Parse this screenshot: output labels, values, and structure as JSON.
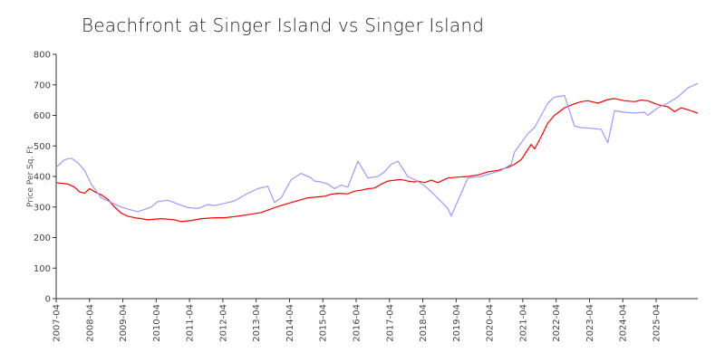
{
  "chart_data": {
    "type": "line",
    "title": "Beachfront at Singer Island vs Singer Island",
    "ylabel": "Price Per Sq. Ft",
    "xlabel": "",
    "ylim": [
      0,
      800
    ],
    "yticks": [
      0,
      100,
      200,
      300,
      400,
      500,
      600,
      700,
      800
    ],
    "x_ticks": [
      "2007-04",
      "2008-04",
      "2009-04",
      "2010-04",
      "2011-04",
      "2012-04",
      "2013-04",
      "2014-04",
      "2015-04",
      "2016-04",
      "2017-04",
      "2018-04",
      "2019-04",
      "2020-04",
      "2021-04",
      "2022-04",
      "2023-04",
      "2024-04",
      "2025-04"
    ],
    "x_range": [
      2007.25,
      2026.5
    ],
    "grid": false,
    "legend": "none",
    "series": [
      {
        "color": "#ff0000",
        "x": [
          2007.25,
          2007.6,
          2007.8,
          2007.95,
          2008.1,
          2008.25,
          2008.4,
          2008.6,
          2008.8,
          2009.0,
          2009.2,
          2009.4,
          2009.6,
          2009.8,
          2010.0,
          2010.4,
          2010.8,
          2011.0,
          2011.3,
          2011.6,
          2012.0,
          2012.3,
          2012.7,
          2013.0,
          2013.4,
          2013.8,
          2014.0,
          2014.4,
          2014.8,
          2015.0,
          2015.3,
          2015.5,
          2015.7,
          2016.0,
          2016.2,
          2016.4,
          2016.6,
          2016.8,
          2017.0,
          2017.2,
          2017.4,
          2017.6,
          2017.8,
          2018.0,
          2018.1,
          2018.3,
          2018.5,
          2018.7,
          2019.0,
          2019.3,
          2019.6,
          2019.9,
          2020.2,
          2020.5,
          2020.8,
          2021.0,
          2021.2,
          2021.35,
          2021.5,
          2021.6,
          2021.8,
          2022.0,
          2022.2,
          2022.5,
          2022.8,
          2023.0,
          2023.2,
          2023.5,
          2023.8,
          2024.0,
          2024.3,
          2024.6,
          2024.8,
          2025.0,
          2025.3,
          2025.6,
          2025.8,
          2026.0,
          2026.3,
          2026.5
        ],
        "y": [
          380,
          375,
          365,
          350,
          345,
          360,
          350,
          340,
          325,
          300,
          280,
          270,
          265,
          262,
          258,
          262,
          258,
          252,
          256,
          262,
          265,
          265,
          270,
          275,
          282,
          298,
          305,
          318,
          330,
          332,
          335,
          342,
          345,
          343,
          352,
          355,
          360,
          362,
          375,
          385,
          388,
          390,
          385,
          382,
          385,
          380,
          388,
          380,
          395,
          398,
          400,
          405,
          415,
          420,
          430,
          440,
          455,
          480,
          505,
          490,
          530,
          575,
          600,
          625,
          638,
          645,
          648,
          640,
          652,
          655,
          648,
          645,
          650,
          648,
          635,
          628,
          612,
          625,
          615,
          607
        ]
      },
      {
        "color": "#9999ff",
        "x": [
          2007.25,
          2007.5,
          2007.7,
          2007.9,
          2008.1,
          2008.3,
          2008.6,
          2008.9,
          2009.2,
          2009.5,
          2009.7,
          2009.9,
          2010.1,
          2010.3,
          2010.6,
          2010.9,
          2011.2,
          2011.5,
          2011.8,
          2012.0,
          2012.3,
          2012.6,
          2013.0,
          2013.3,
          2013.6,
          2013.8,
          2014.0,
          2014.3,
          2014.6,
          2014.9,
          2015.0,
          2015.2,
          2015.4,
          2015.6,
          2015.8,
          2016.0,
          2016.3,
          2016.6,
          2016.9,
          2017.1,
          2017.3,
          2017.5,
          2017.8,
          2018.0,
          2018.3,
          2018.6,
          2019.0,
          2019.1,
          2019.3,
          2019.6,
          2020.0,
          2020.3,
          2020.6,
          2020.9,
          2021.0,
          2021.2,
          2021.4,
          2021.6,
          2021.8,
          2022.0,
          2022.2,
          2022.5,
          2022.8,
          2023.0,
          2023.3,
          2023.5,
          2023.6,
          2023.8,
          2024.0,
          2024.3,
          2024.6,
          2024.9,
          2025.0,
          2025.3,
          2025.6,
          2025.9,
          2026.2,
          2026.5
        ],
        "y": [
          430,
          455,
          460,
          445,
          420,
          375,
          330,
          315,
          300,
          290,
          285,
          292,
          300,
          318,
          322,
          310,
          298,
          295,
          308,
          305,
          312,
          320,
          345,
          360,
          368,
          315,
          330,
          390,
          410,
          395,
          385,
          382,
          375,
          360,
          372,
          365,
          450,
          395,
          400,
          415,
          440,
          450,
          400,
          390,
          370,
          340,
          295,
          270,
          320,
          395,
          400,
          410,
          420,
          440,
          480,
          510,
          540,
          560,
          600,
          640,
          660,
          665,
          565,
          560,
          558,
          555,
          555,
          510,
          615,
          610,
          608,
          610,
          600,
          625,
          640,
          660,
          690,
          705
        ]
      }
    ]
  }
}
